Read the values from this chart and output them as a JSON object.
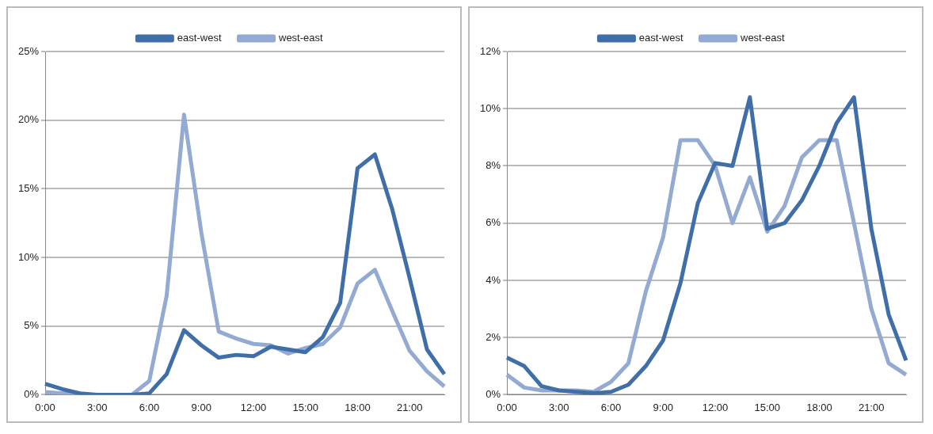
{
  "chart_data": [
    {
      "type": "line",
      "categories": [
        "0:00",
        null,
        null,
        "3:00",
        null,
        null,
        "6:00",
        null,
        null,
        "9:00",
        null,
        null,
        "12:00",
        null,
        null,
        "15:00",
        null,
        null,
        "18:00",
        null,
        null,
        "21:00",
        null,
        null
      ],
      "series": [
        {
          "name": "east-west",
          "color": "#3f6ea8",
          "values": [
            0.8,
            0.4,
            0.1,
            0,
            0,
            0,
            0.1,
            1.5,
            4.7,
            3.6,
            2.7,
            2.9,
            2.8,
            3.5,
            3.3,
            3.1,
            4.2,
            6.7,
            16.5,
            17.5,
            13.5,
            8.5,
            3.3,
            1.5
          ]
        },
        {
          "name": "west-east",
          "color": "#93aad3",
          "values": [
            0.2,
            0.1,
            0,
            0,
            0,
            0,
            1.0,
            7.2,
            20.4,
            11.8,
            4.6,
            4.1,
            3.7,
            3.6,
            3.0,
            3.4,
            3.7,
            4.9,
            8.1,
            9.1,
            6.1,
            3.2,
            1.7,
            0.6
          ]
        }
      ],
      "ylim": [
        0,
        25
      ],
      "yticks": [
        {
          "value": 0,
          "label": "0%"
        },
        {
          "value": 5,
          "label": "5%"
        },
        {
          "value": 10,
          "label": "10%"
        },
        {
          "value": 15,
          "label": "15%"
        },
        {
          "value": 20,
          "label": "20%"
        },
        {
          "value": 25,
          "label": "25%"
        }
      ],
      "grid": "y",
      "legend": "top",
      "marker": "none",
      "line_style": "solid"
    },
    {
      "type": "line",
      "categories": [
        "0:00",
        null,
        null,
        "3:00",
        null,
        null,
        "6:00",
        null,
        null,
        "9:00",
        null,
        null,
        "12:00",
        null,
        null,
        "15:00",
        null,
        null,
        "18:00",
        null,
        null,
        "21:00",
        null,
        null
      ],
      "series": [
        {
          "name": "east-west",
          "color": "#3f6ea8",
          "values": [
            1.3,
            1.0,
            0.3,
            0.15,
            0.1,
            0.05,
            0.1,
            0.35,
            1.0,
            1.9,
            3.9,
            6.7,
            8.1,
            8.0,
            10.4,
            5.8,
            6.0,
            6.8,
            8.0,
            9.5,
            10.4,
            5.8,
            2.8,
            1.2
          ]
        },
        {
          "name": "west-east",
          "color": "#93aad3",
          "values": [
            0.7,
            0.25,
            0.15,
            0.15,
            0.15,
            0.1,
            0.45,
            1.1,
            3.6,
            5.5,
            8.9,
            8.9,
            8.0,
            6.0,
            7.6,
            5.7,
            6.6,
            8.3,
            8.9,
            8.9,
            6.0,
            3.0,
            1.1,
            0.7
          ]
        }
      ],
      "ylim": [
        0,
        12
      ],
      "yticks": [
        {
          "value": 0,
          "label": "0%"
        },
        {
          "value": 2,
          "label": "2%"
        },
        {
          "value": 4,
          "label": "4%"
        },
        {
          "value": 6,
          "label": "6%"
        },
        {
          "value": 8,
          "label": "8%"
        },
        {
          "value": 10,
          "label": "10%"
        },
        {
          "value": 12,
          "label": "12%"
        }
      ],
      "grid": "y",
      "legend": "top",
      "marker": "none",
      "line_style": "solid"
    }
  ]
}
